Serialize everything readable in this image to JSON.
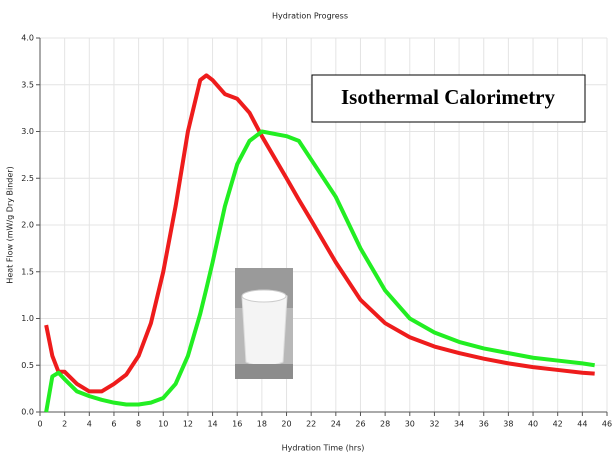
{
  "chart_data": {
    "type": "line",
    "title": "Hydration Progress",
    "x_label": "Hydration Time (hrs)",
    "y_label": "Heat Flow (mW/g Dry Binder)",
    "x": [
      0.5,
      1,
      1.5,
      2,
      3,
      4,
      5,
      6,
      7,
      8,
      9,
      10,
      11,
      12,
      13,
      13.5,
      14,
      15,
      16,
      17,
      18,
      20,
      21,
      22,
      24,
      26,
      28,
      30,
      32,
      34,
      36,
      38,
      40,
      42,
      44,
      45
    ],
    "series": [
      {
        "color": "#ee1c1c",
        "values": [
          0.93,
          0.6,
          0.43,
          0.43,
          0.3,
          0.22,
          0.22,
          0.3,
          0.4,
          0.6,
          0.95,
          1.5,
          2.2,
          3.0,
          3.55,
          3.6,
          3.55,
          3.4,
          3.35,
          3.2,
          2.95,
          2.5,
          2.27,
          2.05,
          1.6,
          1.2,
          0.95,
          0.8,
          0.7,
          0.63,
          0.57,
          0.52,
          0.48,
          0.45,
          0.42,
          0.41
        ]
      },
      {
        "color": "#22ee22",
        "values": [
          0,
          0.38,
          0.42,
          0.35,
          0.22,
          0.17,
          0.13,
          0.1,
          0.08,
          0.08,
          0.1,
          0.15,
          0.3,
          0.6,
          1.05,
          1.32,
          1.6,
          2.2,
          2.65,
          2.9,
          3.0,
          2.95,
          2.9,
          2.7,
          2.3,
          1.75,
          1.3,
          1.0,
          0.85,
          0.75,
          0.68,
          0.63,
          0.58,
          0.55,
          0.52,
          0.5
        ]
      }
    ],
    "xlim": [
      0,
      46
    ],
    "xticks": [
      0,
      2,
      4,
      6,
      8,
      10,
      12,
      14,
      16,
      18,
      20,
      22,
      24,
      26,
      28,
      30,
      32,
      34,
      36,
      38,
      40,
      42,
      44,
      46
    ],
    "ylim": [
      0,
      4
    ],
    "yticks": [
      {
        "value": 0,
        "label": "0.0"
      },
      0.5,
      {
        "value": 1,
        "label": "1.0"
      },
      1.5,
      {
        "value": 2,
        "label": "2.0"
      },
      2.5,
      {
        "value": 3,
        "label": "3.0"
      },
      3.5,
      {
        "value": 4,
        "label": "4.0"
      }
    ],
    "grid": true,
    "annotations": [
      {
        "text": "Isothermal Calorimetry"
      }
    ]
  }
}
